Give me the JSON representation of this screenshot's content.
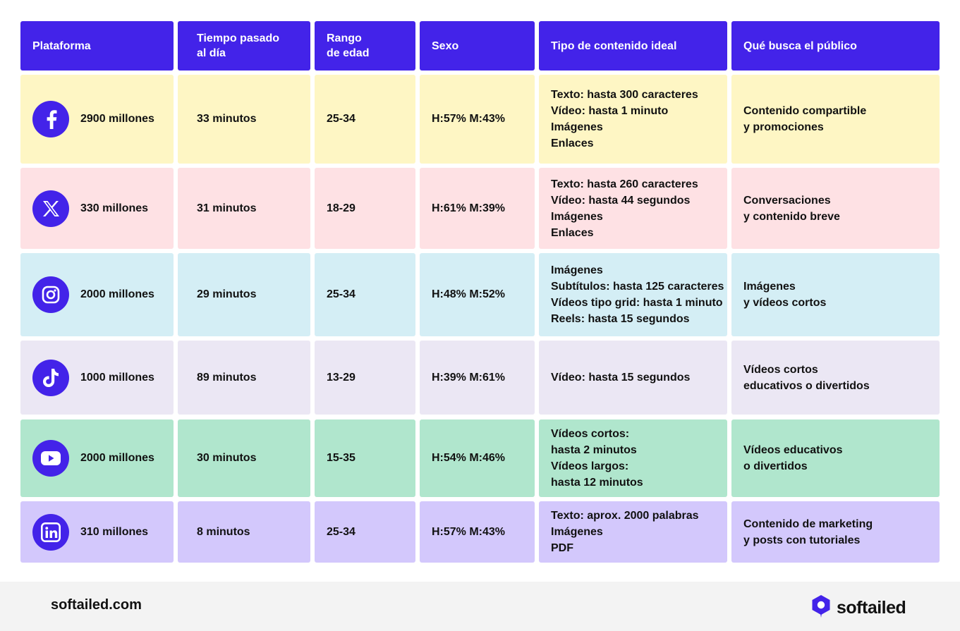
{
  "header": {
    "platform": "Plataforma",
    "time": "Tiempo pasado\nal día",
    "age": "Rango\nde edad",
    "sex": "Sexo",
    "content": "Tipo de contenido ideal",
    "audience": "Qué busca el público"
  },
  "rows": [
    {
      "icon": "facebook-icon",
      "color": "#fef6c4",
      "users": "2900 millones",
      "time": "33 minutos",
      "age": "25-34",
      "sex": "H:57%  M:43%",
      "content": [
        "Texto: hasta 300 caracteres",
        "Vídeo: hasta 1 minuto",
        "Imágenes",
        "Enlaces"
      ],
      "audience": "Contenido compartible\ny promociones"
    },
    {
      "icon": "x-icon",
      "color": "#fee1e4",
      "users": "330 millones",
      "time": "31 minutos",
      "age": "18-29",
      "sex": "H:61%  M:39%",
      "content": [
        "Texto: hasta 260 caracteres",
        "Vídeo: hasta 44 segundos",
        "Imágenes",
        "Enlaces"
      ],
      "audience": "Conversaciones\ny contenido breve"
    },
    {
      "icon": "instagram-icon",
      "color": "#d4eef5",
      "users": "2000 millones",
      "time": "29 minutos",
      "age": "25-34",
      "sex": "H:48%  M:52%",
      "content": [
        "Imágenes",
        "Subtítulos: hasta 125 caracteres",
        "Vídeos tipo grid: hasta 1 minuto",
        "Reels: hasta 15 segundos"
      ],
      "audience": "Imágenes\ny vídeos cortos"
    },
    {
      "icon": "tiktok-icon",
      "color": "#ebe7f4",
      "users": "1000 millones",
      "time": "89 minutos",
      "age": "13-29",
      "sex": "H:39%  M:61%",
      "content": [
        "Vídeo: hasta 15 segundos"
      ],
      "audience": "Vídeos cortos\neducativos o divertidos"
    },
    {
      "icon": "youtube-icon",
      "color": "#b0e6cd",
      "users": "2000 millones",
      "time": "30 minutos",
      "age": "15-35",
      "sex": "H:54%  M:46%",
      "content": [
        "Vídeos cortos:",
        "hasta 2 minutos",
        "Vídeos largos:",
        "hasta 12 minutos"
      ],
      "audience": "Vídeos educativos\no divertidos"
    },
    {
      "icon": "linkedin-icon",
      "color": "#d3c8fc",
      "users": "310 millones",
      "time": "8 minutos",
      "age": "25-34",
      "sex": "H:57%  M:43%",
      "content": [
        "Texto: aprox. 2000 palabras",
        "Imágenes",
        "PDF"
      ],
      "audience": "Contenido de marketing\ny posts con tutoriales"
    }
  ],
  "footer": {
    "site": "softailed.com",
    "brand": "softailed",
    "logo_icon": "softailed-logo-icon"
  },
  "colors": {
    "header": "#4323e9",
    "accent": "#4323e9"
  }
}
